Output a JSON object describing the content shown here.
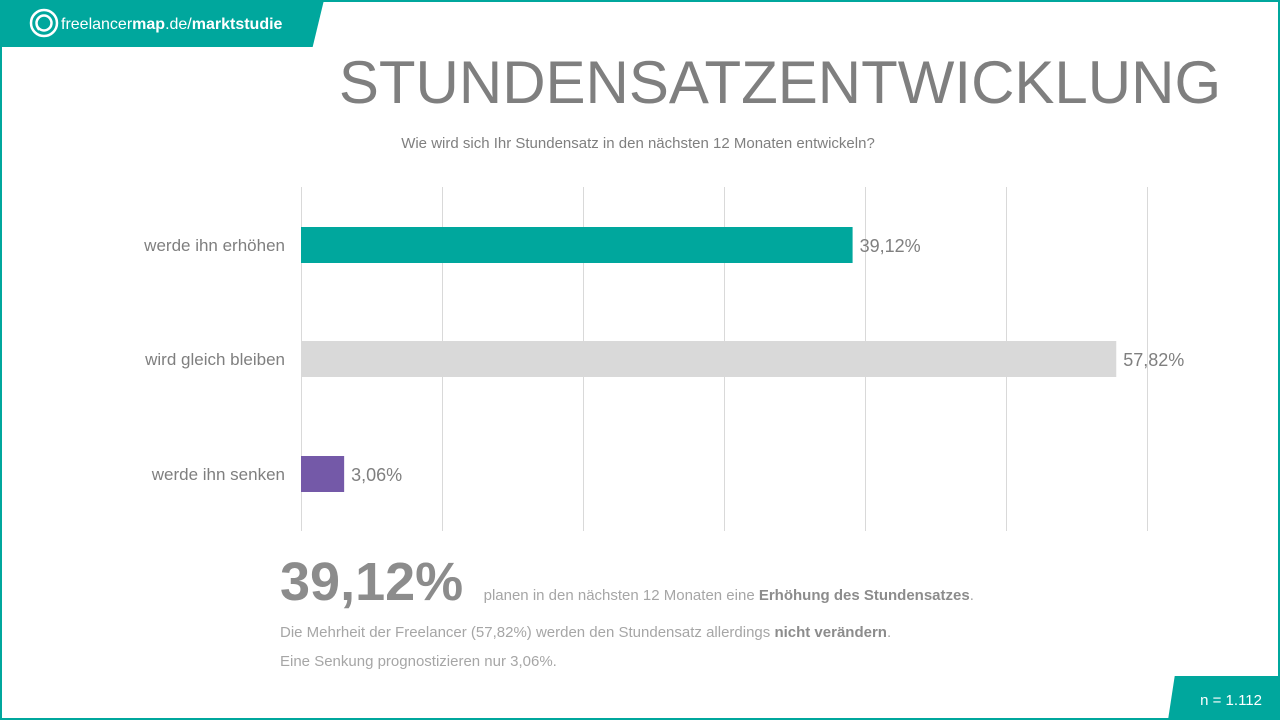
{
  "brand": {
    "name_light": "freelancer",
    "name_bold": "map",
    "domain": ".de/",
    "section": "marktstudie",
    "icon": "freelancermap-logo-icon"
  },
  "title": "STUNDENSATZENTWICKLUNG",
  "subtitle": "Wie wird sich Ihr  Stundensatz  in den nächsten  12 Monaten  entwickeln?",
  "colors": {
    "accent": "#00a79d",
    "neutral_bar": "#d9d9d9",
    "purple_bar": "#7459a8",
    "text": "#7f7f7f"
  },
  "chart_data": {
    "type": "bar",
    "orientation": "horizontal",
    "categories": [
      "werde ihn erhöhen",
      "wird gleich bleiben",
      "werde ihn senken"
    ],
    "values": [
      39.12,
      57.82,
      3.06
    ],
    "value_labels": [
      "39,12%",
      "57,82%",
      "3,06%"
    ],
    "bar_colors": [
      "#00a79d",
      "#d9d9d9",
      "#7459a8"
    ],
    "xlim": [
      0,
      60
    ],
    "x_gridline_step": 10,
    "grid": true,
    "title": "",
    "xlabel": "",
    "ylabel": ""
  },
  "summary": {
    "big_value": "39,12%",
    "text_before": "planen in den nächsten  12 Monaten  eine ",
    "text_bold": "Erhöhung des Stundensatzes",
    "text_after": "."
  },
  "notes": {
    "line1_before": "Die Mehrheit  der Freelancer (57,82%) werden den Stundensatz  allerdings ",
    "line1_bold": "nicht verändern",
    "line1_after": ".",
    "line2": "Eine Senkung  prognostizieren nur 3,06%."
  },
  "sample": {
    "label": "n = 1.112"
  }
}
